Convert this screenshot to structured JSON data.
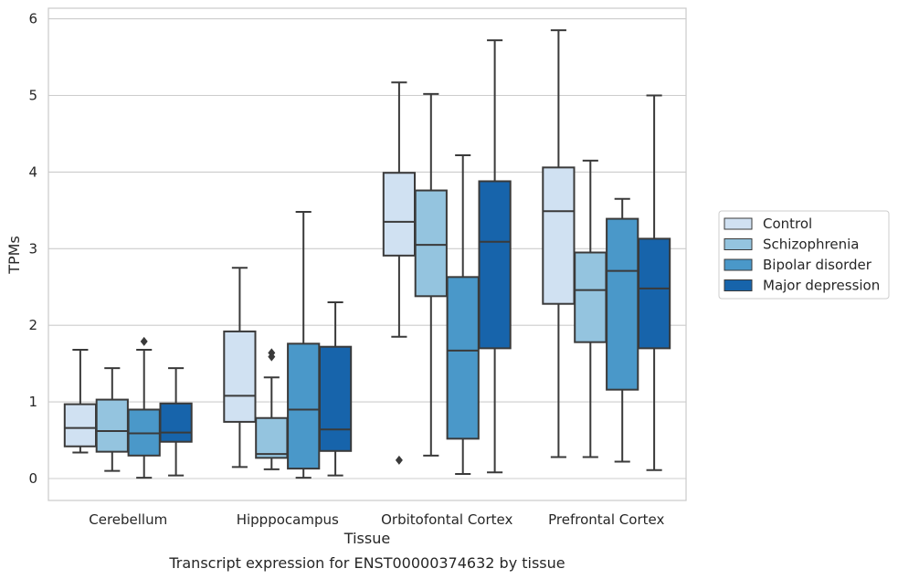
{
  "chart_data": {
    "type": "boxplot",
    "title": "",
    "caption": "Transcript expression for ENST00000374632 by tissue",
    "xlabel": "Tissue",
    "ylabel": "TPMs",
    "ylim": [
      -0.28,
      6.18
    ],
    "yticks": [
      0,
      1,
      2,
      3,
      4,
      5,
      6
    ],
    "grid": true,
    "legend_position": "right",
    "categories": [
      "Cerebellum",
      "Hipppocampus",
      "Orbitofontal Cortex",
      "Prefrontal Cortex"
    ],
    "series": [
      {
        "name": "Control",
        "color": "#d0e1f2",
        "boxes": [
          {
            "whisker_low": 0.34,
            "q1": 0.42,
            "median": 0.66,
            "q3": 0.97,
            "whisker_high": 1.68,
            "outliers": []
          },
          {
            "whisker_low": 0.15,
            "q1": 0.74,
            "median": 1.08,
            "q3": 1.92,
            "whisker_high": 2.75,
            "outliers": []
          },
          {
            "whisker_low": 1.85,
            "q1": 2.91,
            "median": 3.35,
            "q3": 3.99,
            "whisker_high": 5.17,
            "outliers": [
              0.24
            ]
          },
          {
            "whisker_low": 0.28,
            "q1": 2.28,
            "median": 3.49,
            "q3": 4.06,
            "whisker_high": 5.85,
            "outliers": []
          }
        ]
      },
      {
        "name": "Schizophrenia",
        "color": "#94c4df",
        "boxes": [
          {
            "whisker_low": 0.1,
            "q1": 0.35,
            "median": 0.62,
            "q3": 1.03,
            "whisker_high": 1.44,
            "outliers": []
          },
          {
            "whisker_low": 0.12,
            "q1": 0.27,
            "median": 0.32,
            "q3": 0.79,
            "whisker_high": 1.32,
            "outliers": [
              1.59,
              1.64
            ]
          },
          {
            "whisker_low": 0.3,
            "q1": 2.38,
            "median": 3.05,
            "q3": 3.76,
            "whisker_high": 5.02,
            "outliers": []
          },
          {
            "whisker_low": 0.28,
            "q1": 1.78,
            "median": 2.46,
            "q3": 2.95,
            "whisker_high": 4.15,
            "outliers": []
          }
        ]
      },
      {
        "name": "Bipolar disorder",
        "color": "#4a98c9",
        "boxes": [
          {
            "whisker_low": 0.01,
            "q1": 0.3,
            "median": 0.59,
            "q3": 0.9,
            "whisker_high": 1.68,
            "outliers": [
              1.79
            ]
          },
          {
            "whisker_low": 0.01,
            "q1": 0.13,
            "median": 0.9,
            "q3": 1.76,
            "whisker_high": 3.48,
            "outliers": []
          },
          {
            "whisker_low": 0.06,
            "q1": 0.52,
            "median": 1.67,
            "q3": 2.63,
            "whisker_high": 4.22,
            "outliers": []
          },
          {
            "whisker_low": 0.22,
            "q1": 1.16,
            "median": 2.71,
            "q3": 3.39,
            "whisker_high": 3.65,
            "outliers": []
          }
        ]
      },
      {
        "name": "Major depression",
        "color": "#1764ab",
        "boxes": [
          {
            "whisker_low": 0.04,
            "q1": 0.48,
            "median": 0.6,
            "q3": 0.98,
            "whisker_high": 1.44,
            "outliers": []
          },
          {
            "whisker_low": 0.04,
            "q1": 0.36,
            "median": 0.64,
            "q3": 1.72,
            "whisker_high": 2.3,
            "outliers": []
          },
          {
            "whisker_low": 0.08,
            "q1": 1.7,
            "median": 3.09,
            "q3": 3.88,
            "whisker_high": 5.72,
            "outliers": []
          },
          {
            "whisker_low": 0.11,
            "q1": 1.7,
            "median": 2.48,
            "q3": 3.13,
            "whisker_high": 5.0,
            "outliers": []
          }
        ]
      }
    ]
  }
}
